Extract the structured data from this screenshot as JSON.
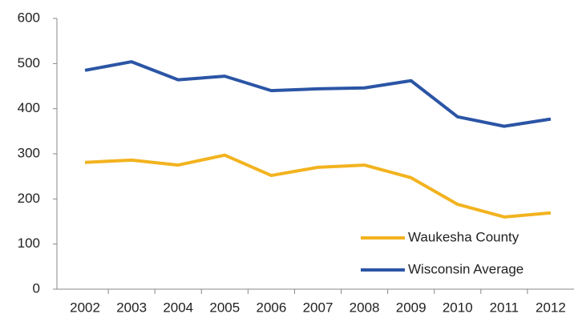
{
  "chart_data": {
    "type": "line",
    "categories": [
      "2002",
      "2003",
      "2004",
      "2005",
      "2006",
      "2007",
      "2008",
      "2009",
      "2010",
      "2011",
      "2012"
    ],
    "series": [
      {
        "name": "Waukesha County",
        "color": "#f2b31f",
        "values": [
          281,
          286,
          275,
          297,
          252,
          270,
          275,
          247,
          188,
          160,
          169
        ]
      },
      {
        "name": "Wisconsin Average",
        "color": "#2b55a5",
        "values": [
          485,
          504,
          464,
          472,
          440,
          444,
          446,
          462,
          382,
          361,
          377
        ]
      }
    ],
    "ylim": [
      0,
      600
    ],
    "yticks": [
      0,
      100,
      200,
      300,
      400,
      500,
      600
    ],
    "grid": false,
    "legend": "lower right"
  }
}
